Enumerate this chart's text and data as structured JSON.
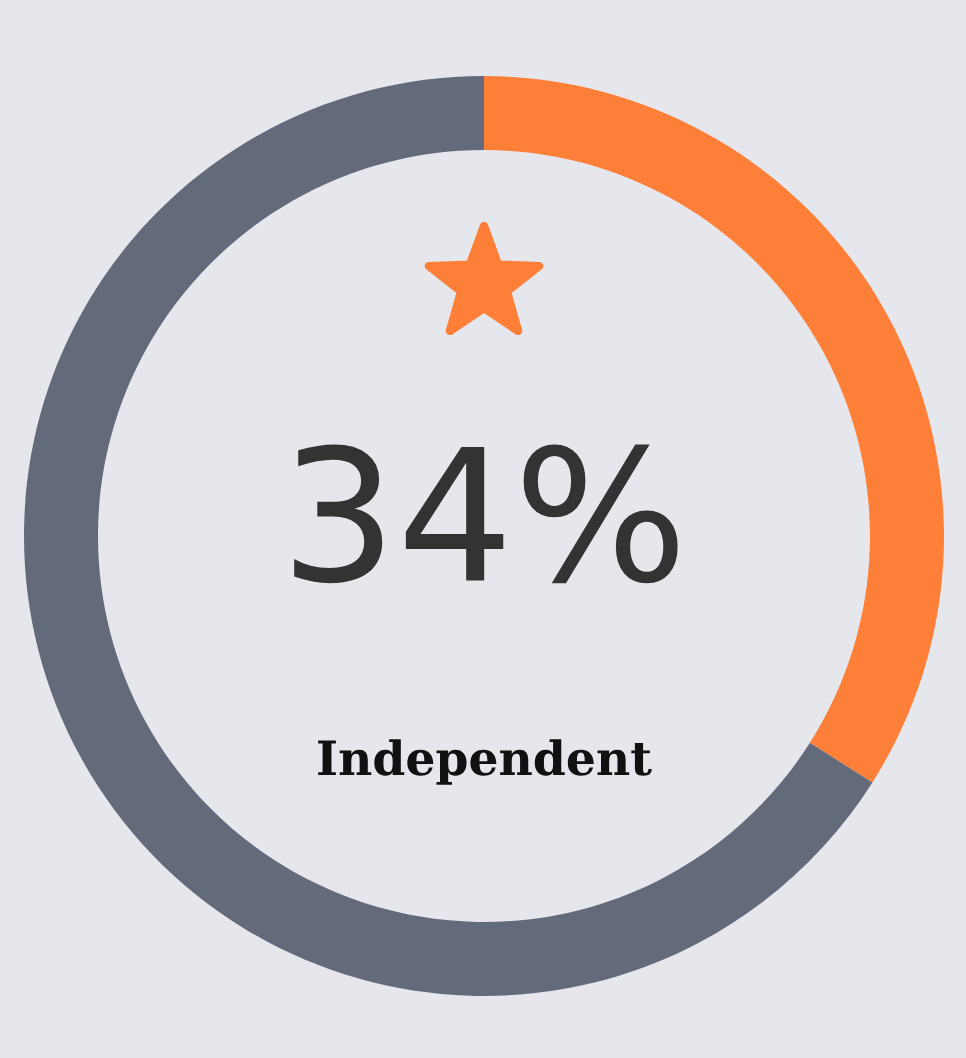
{
  "chart_data": {
    "type": "donut",
    "title": "Independent",
    "categories": [
      null,
      null
    ],
    "values": [
      34,
      66
    ],
    "colors": [
      "#fe7f38",
      "#636b7a"
    ],
    "value_labels": [
      "34%",
      null
    ]
  }
}
